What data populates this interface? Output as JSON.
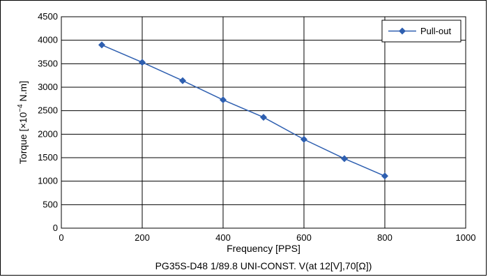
{
  "chart_data": {
    "type": "line",
    "title": "",
    "caption": "PG35S-D48 1/89.8 UNI-CONST. V(at 12[V],70[Ω])",
    "xlabel": "Frequency [PPS]",
    "ylabel_prefix": "Torque [×10",
    "ylabel_exp": "−4",
    "ylabel_suffix": " N.m]",
    "xlim": [
      0,
      1000
    ],
    "ylim": [
      0,
      4500
    ],
    "xticks": [
      0,
      200,
      400,
      600,
      800,
      1000
    ],
    "yticks": [
      0,
      500,
      1000,
      1500,
      2000,
      2500,
      3000,
      3500,
      4000,
      4500
    ],
    "grid": true,
    "legend_position": "top-right",
    "series": [
      {
        "name": "Pull-out",
        "color": "#2e5fb0",
        "marker": "diamond",
        "x": [
          100,
          200,
          300,
          400,
          500,
          600,
          700,
          800
        ],
        "y": [
          3900,
          3530,
          3140,
          2730,
          2360,
          1890,
          1480,
          1110
        ]
      }
    ]
  }
}
